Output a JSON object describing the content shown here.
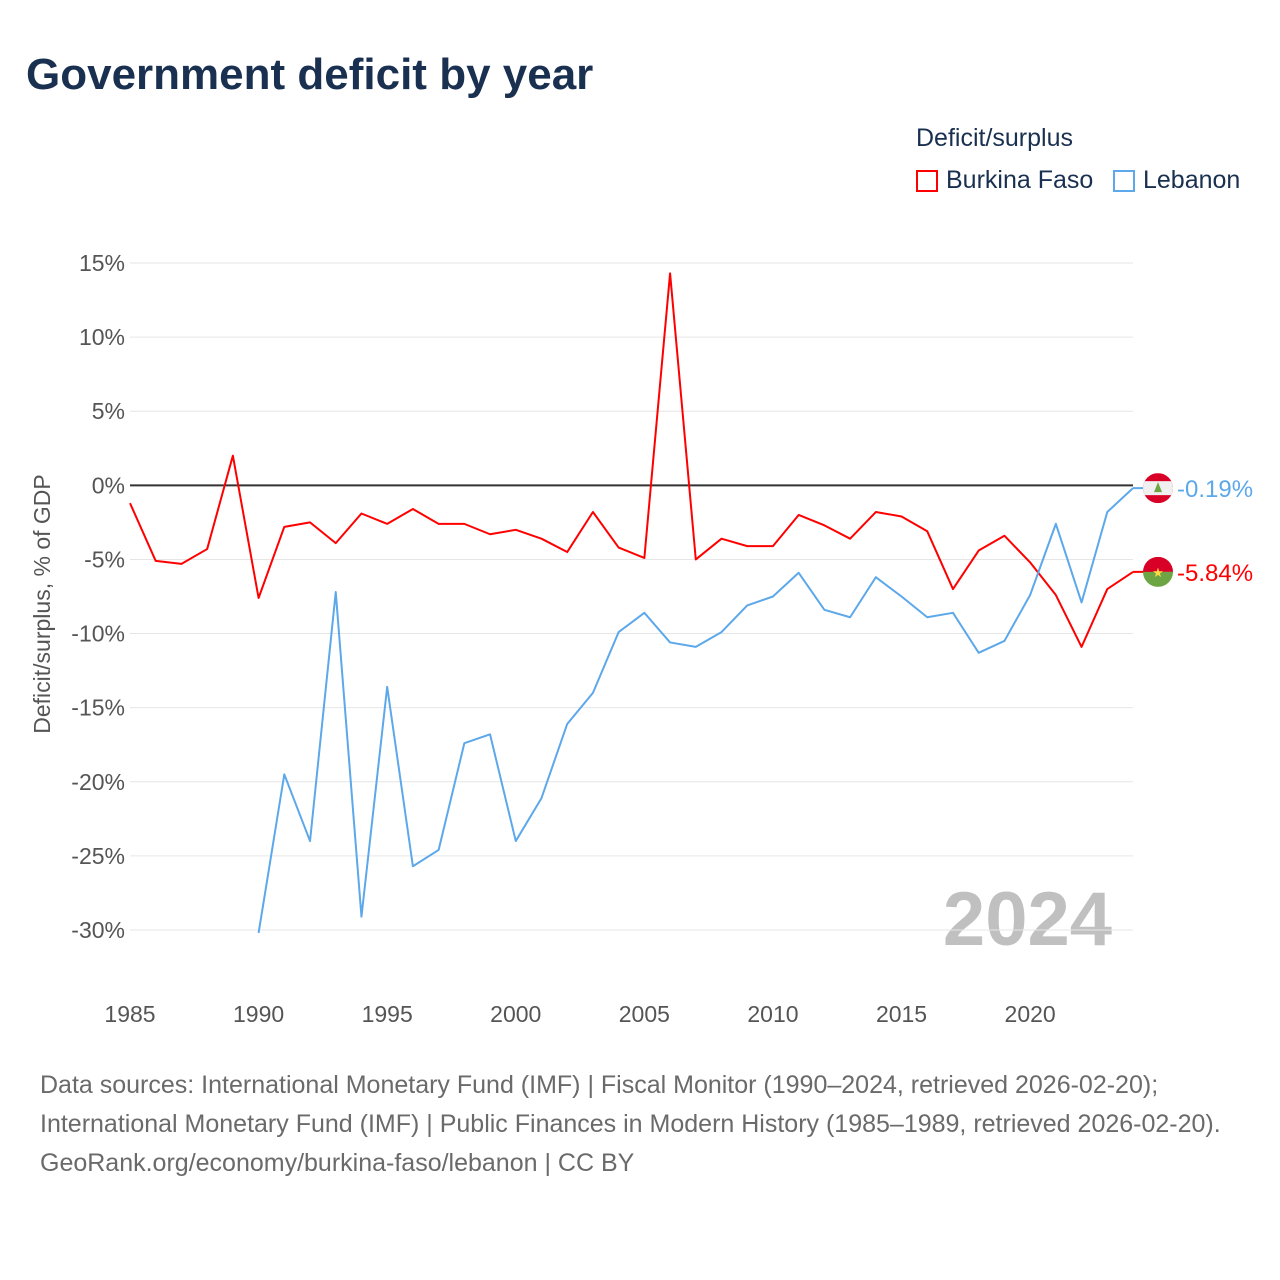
{
  "title": "Government deficit by year",
  "legend": {
    "title": "Deficit/surplus",
    "items": [
      {
        "label": "Burkina Faso",
        "color": "#ff0000"
      },
      {
        "label": "Lebanon",
        "color": "#5ca8ea"
      }
    ]
  },
  "year_watermark": "2024",
  "footer": {
    "sources": "Data sources: International Monetary Fund (IMF) | Fiscal Monitor (1990–2024, retrieved 2026-02-20); International Monetary Fund (IMF) | Public Finances in Modern History (1985–1989, retrieved 2026-02-20).",
    "credit": "GeoRank.org/economy/burkina-faso/lebanon | CC BY"
  },
  "chart_data": {
    "type": "line",
    "title": "Government deficit by year",
    "xlabel": "",
    "ylabel": "Deficit/surplus, % of GDP",
    "xlim": [
      1985,
      2024
    ],
    "ylim": [
      -30,
      15
    ],
    "xticks": [
      1985,
      1990,
      1995,
      2000,
      2005,
      2010,
      2015,
      2020
    ],
    "yticks": [
      15,
      10,
      5,
      0,
      -5,
      -10,
      -15,
      -20,
      -25,
      -30
    ],
    "ytick_labels": [
      "15%",
      "10%",
      "5%",
      "0%",
      "-5%",
      "-10%",
      "-15%",
      "-20%",
      "-25%",
      "-30%"
    ],
    "series": [
      {
        "name": "Burkina Faso",
        "color": "#ff0000",
        "end_label": "-5.84%",
        "start": 1985,
        "values": [
          -1.2,
          -5.1,
          -5.3,
          -4.3,
          2.0,
          -7.6,
          -2.8,
          -2.5,
          -3.9,
          -1.9,
          -2.6,
          -1.6,
          -2.6,
          -2.6,
          -3.3,
          -3.0,
          -3.6,
          -4.5,
          -1.8,
          -4.2,
          -4.9,
          14.3,
          -5.0,
          -3.6,
          -4.1,
          -4.1,
          -2.0,
          -2.7,
          -3.6,
          -1.8,
          -2.1,
          -3.1,
          -7.0,
          -4.4,
          -3.4,
          -5.2,
          -7.4,
          -10.9,
          -7.0,
          -5.84
        ]
      },
      {
        "name": "Lebanon",
        "color": "#5ca8ea",
        "end_label": "-0.19%",
        "start": 1990,
        "values": [
          -30.2,
          -19.5,
          -24.0,
          -7.2,
          -29.1,
          -13.6,
          -25.7,
          -24.6,
          -17.4,
          -16.8,
          -24.0,
          -21.1,
          -16.1,
          -14.0,
          -9.9,
          -8.6,
          -10.6,
          -10.9,
          -9.9,
          -8.1,
          -7.5,
          -5.9,
          -8.4,
          -8.9,
          -6.2,
          -7.5,
          -8.9,
          -8.6,
          -11.3,
          -10.5,
          -7.4,
          -2.6,
          -7.9,
          -1.8,
          -0.19
        ]
      }
    ]
  }
}
